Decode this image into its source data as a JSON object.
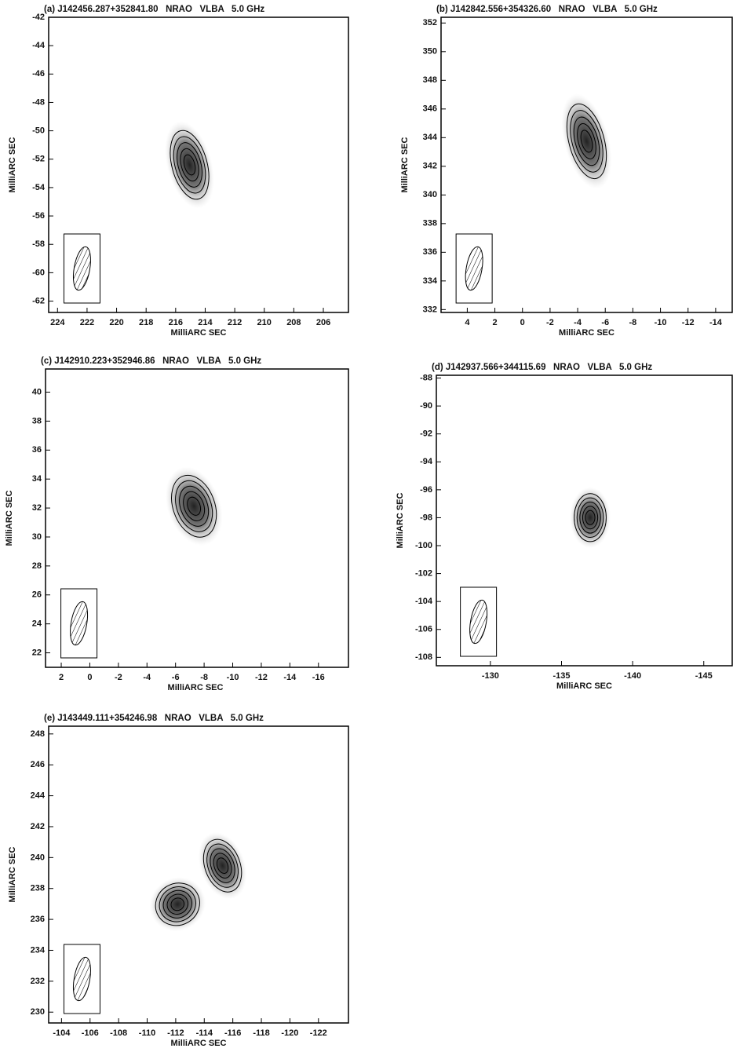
{
  "chart_data": [
    {
      "type": "contour_map",
      "title": "(a) J142456.287+352841.80   NRAO   VLBA   5.0 GHz",
      "x_label": "MilliARC SEC",
      "y_label": "MilliARC SEC",
      "xlim": [
        224.6,
        204.3
      ],
      "ylim": [
        -62.8,
        -42
      ],
      "xticks": [
        224,
        222,
        220,
        218,
        216,
        214,
        212,
        210,
        208,
        206
      ],
      "yticks": [
        -62,
        -60,
        -58,
        -56,
        -54,
        -52,
        -50,
        -48,
        -46,
        -44,
        -42
      ]
    },
    {
      "type": "contour_map",
      "title": "(b) J142842.556+354326.60   NRAO   VLBA   5.0 GHz",
      "x_label": "MilliARC SEC",
      "y_label": "MilliARC SEC",
      "xlim": [
        5.9,
        -15.2
      ],
      "ylim": [
        331.8,
        352.4
      ],
      "xticks": [
        4,
        2,
        0,
        -2,
        -4,
        -6,
        -8,
        -10,
        -12,
        -14
      ],
      "yticks": [
        332,
        334,
        336,
        338,
        340,
        342,
        344,
        346,
        348,
        350,
        352
      ]
    },
    {
      "type": "contour_map",
      "title": "(c) J142910.223+352946.86   NRAO   VLBA   5.0 GHz",
      "x_label": "MilliARC SEC",
      "y_label": "MilliARC SEC",
      "xlim": [
        3.1,
        -18.1
      ],
      "ylim": [
        21.0,
        41.6
      ],
      "xticks": [
        2,
        0,
        -2,
        -4,
        -6,
        -8,
        -10,
        -12,
        -14,
        -16
      ],
      "yticks": [
        22,
        24,
        26,
        28,
        30,
        32,
        34,
        36,
        38,
        40
      ]
    },
    {
      "type": "contour_map",
      "title": "(d) J142937.566+344115.69   NRAO   VLBA   5.0 GHz",
      "x_label": "MilliARC SEC",
      "y_label": "MilliARC SEC",
      "xlim": [
        -126.2,
        -147.0
      ],
      "ylim": [
        -108.6,
        -87.8
      ],
      "xticks": [
        -130,
        -135,
        -140,
        -145
      ],
      "yticks": [
        -108,
        -106,
        -104,
        -102,
        -100,
        -98,
        -96,
        -94,
        -92,
        -90,
        -88
      ]
    },
    {
      "type": "contour_map",
      "title": "(e) J143449.111+354246.98   NRAO   VLBA   5.0 GHz",
      "x_label": "MilliARC SEC",
      "y_label": "MilliARC SEC",
      "xlim": [
        -103.1,
        -124.1
      ],
      "ylim": [
        229.3,
        248.5
      ],
      "xticks": [
        -104,
        -106,
        -108,
        -110,
        -112,
        -114,
        -116,
        -118,
        -120,
        -122
      ],
      "yticks": [
        230,
        232,
        234,
        236,
        238,
        240,
        242,
        244,
        246,
        248
      ]
    }
  ]
}
